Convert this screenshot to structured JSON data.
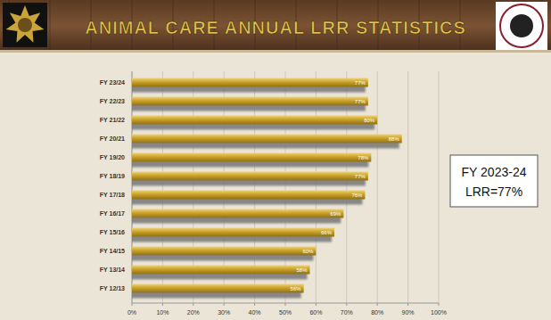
{
  "chart_data": {
    "type": "bar",
    "orientation": "horizontal",
    "title": "ANIMAL CARE ANNUAL LRR STATISTICS",
    "categories": [
      "FY 23/24",
      "FY 22/23",
      "FY 21/22",
      "FY 20/21",
      "FY 19/20",
      "FY 18/19",
      "FY 17/18",
      "FY 16/17",
      "FY 15/16",
      "FY 14/15",
      "FY 13/14",
      "FY 12/13"
    ],
    "values": [
      77,
      77,
      80,
      88,
      78,
      77,
      76,
      69,
      66,
      60,
      58,
      56
    ],
    "value_labels": [
      "77%",
      "77%",
      "80%",
      "88%",
      "78%",
      "77%",
      "76%",
      "69%",
      "66%",
      "60%",
      "58%",
      "56%"
    ],
    "color": "#c9a227",
    "xlim": [
      0,
      100
    ],
    "xticks": [
      {
        "value": 0,
        "label": "0%"
      },
      {
        "value": 10,
        "label": "10%"
      },
      {
        "value": 20,
        "label": "20%"
      },
      {
        "value": 30,
        "label": "30%"
      },
      {
        "value": 40,
        "label": "40%"
      },
      {
        "value": 50,
        "label": "50%"
      },
      {
        "value": 60,
        "label": "60%"
      },
      {
        "value": 70,
        "label": "70%"
      },
      {
        "value": 80,
        "label": "80%"
      },
      {
        "value": 90,
        "label": "90%"
      },
      {
        "value": 100,
        "label": "100%"
      }
    ],
    "grid": true,
    "data_labels": true,
    "annotations": [
      "FY 2023-24",
      "LRR=77%"
    ]
  }
}
